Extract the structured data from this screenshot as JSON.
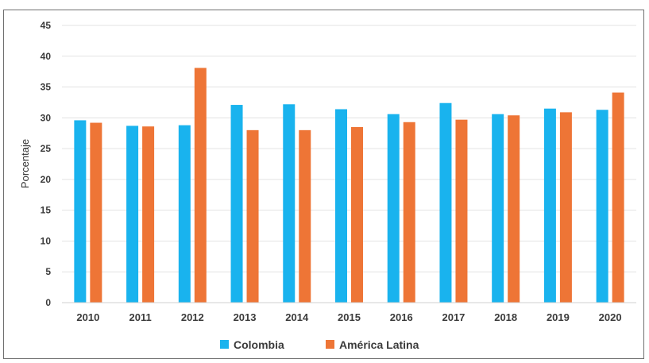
{
  "chart_data": {
    "type": "bar",
    "categories": [
      "2010",
      "2011",
      "2012",
      "2013",
      "2014",
      "2015",
      "2016",
      "2017",
      "2018",
      "2019",
      "2020"
    ],
    "series": [
      {
        "name": "Colombia",
        "color": "#19B3EE",
        "values": [
          29.6,
          28.7,
          28.8,
          32.1,
          32.2,
          31.4,
          30.6,
          32.4,
          30.6,
          31.5,
          31.3
        ]
      },
      {
        "name": "América Latina",
        "color": "#EE7536",
        "values": [
          29.2,
          28.6,
          38.1,
          28.0,
          28.0,
          28.5,
          29.3,
          29.7,
          30.4,
          30.9,
          34.1
        ]
      }
    ],
    "ylabel": "Porcentaje",
    "ylim": [
      0,
      45
    ],
    "yticks": [
      "0",
      "5",
      "10",
      "15",
      "20",
      "25",
      "30",
      "35",
      "40",
      "45"
    ],
    "grid": true,
    "legend_position": "bottom"
  }
}
